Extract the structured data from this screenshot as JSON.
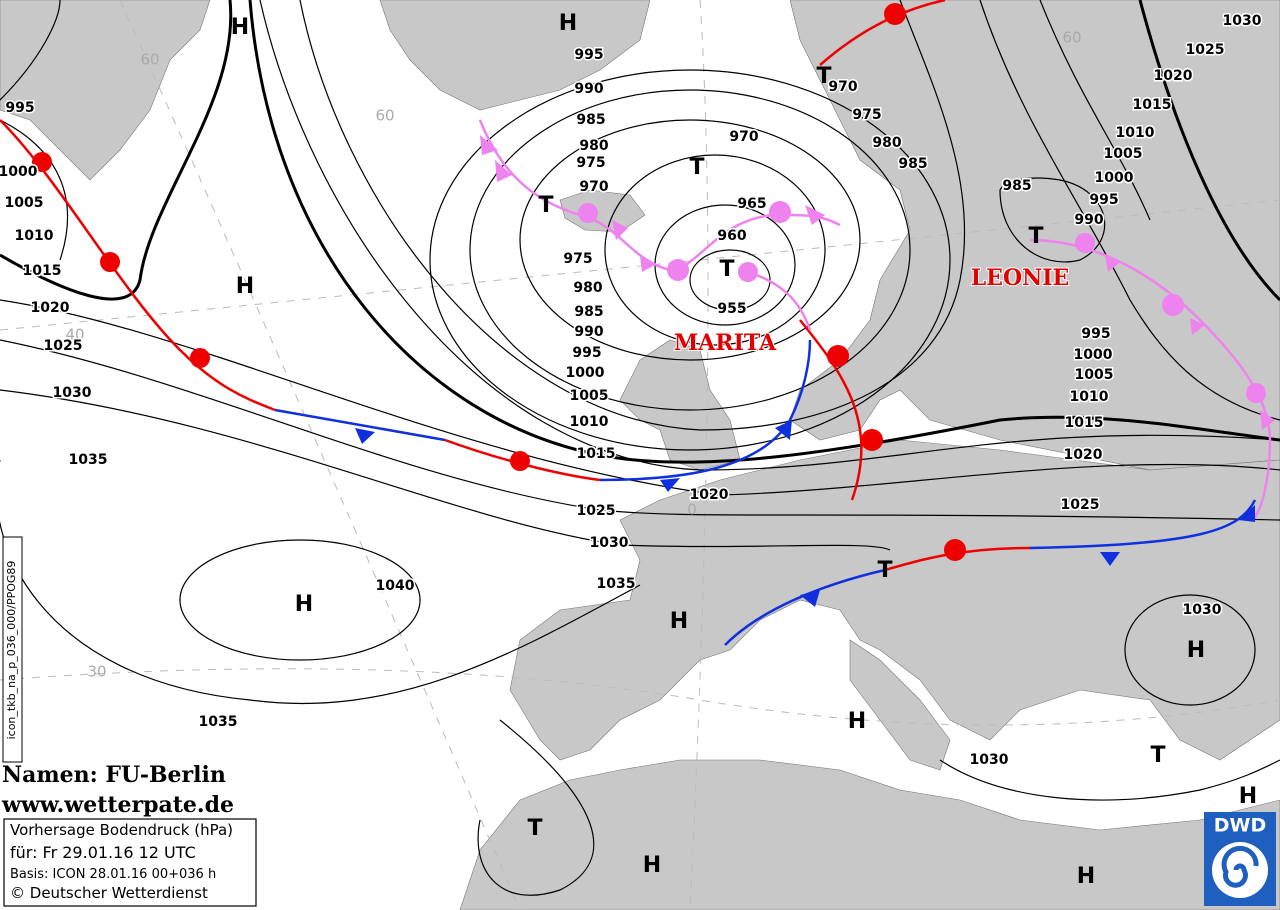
{
  "isobar_labels": [
    995,
    1000,
    1005,
    1010,
    1015,
    1020,
    1025,
    1030,
    1035,
    1040,
    1035,
    995,
    990,
    985,
    980,
    975,
    970,
    975,
    980,
    985,
    990,
    995,
    1000,
    1005,
    1010,
    1015,
    1020,
    1025,
    1030,
    1035,
    970,
    965,
    960,
    955,
    970,
    975,
    980,
    985,
    1030,
    1025,
    1020,
    1015,
    1010,
    1005,
    1000,
    995,
    990,
    985,
    995,
    1000,
    1005,
    1010,
    1015,
    1020,
    1025,
    1030,
    1030
  ],
  "centers": [
    "H",
    "H",
    "T",
    "T",
    "T",
    "T",
    "T",
    "H",
    "H",
    "H",
    "T",
    "H",
    "H",
    "T",
    "H",
    "T",
    "H",
    "H"
  ],
  "latitude_labels": [
    "60",
    "60",
    "60",
    "40",
    "30",
    "0"
  ],
  "storm_names": [
    "MARITA",
    "LEONIE"
  ],
  "product_id": "icon_tkb_na_p_036_000/PPOG89",
  "credits": {
    "names": "Namen: FU-Berlin",
    "url": "www.wetterpate.de"
  },
  "info_box": {
    "title": "Vorhersage Bodendruck (hPa)",
    "valid": "für:  Fr 29.01.16  12 UTC",
    "basis": "Basis: ICON  28.01.16 00+036 h",
    "copyright": "© Deutscher Wetterdienst"
  },
  "logo": "DWD"
}
